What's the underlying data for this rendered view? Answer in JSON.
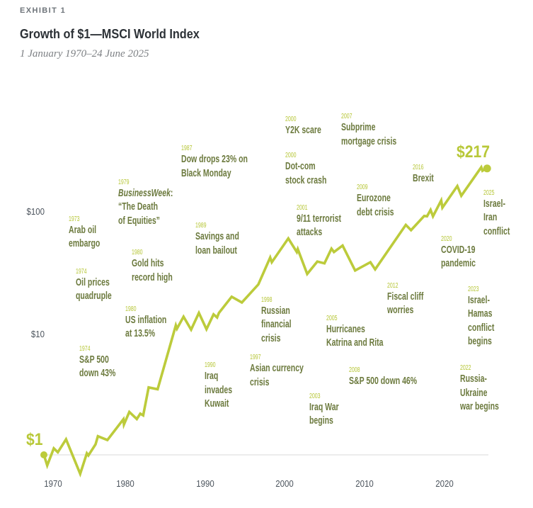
{
  "header": {
    "exhibit": "EXHIBIT 1",
    "title": "Growth of $1—MSCI World Index",
    "subtitle": "1 January 1970–24 June 2025"
  },
  "colors": {
    "line": "#bccb3b",
    "big_label": "#b8c838",
    "annotation_year": "#b6c636",
    "annotation_text": "#6c7a3e",
    "axis_text": "#4b535c",
    "gridline": "#e6e6e6",
    "title": "#2c3136"
  },
  "chart_data": {
    "type": "line",
    "title": "Growth of $1—MSCI World Index",
    "subtitle": "1 January 1970–24 June 2025",
    "xlabel": "",
    "ylabel": "",
    "y_scale": "log",
    "xlim": [
      1970,
      2025.5
    ],
    "ylim": [
      0.65,
      260
    ],
    "grid": "single baseline at $1",
    "legend": "none",
    "x_ticks": [
      1970,
      1980,
      1990,
      2000,
      2010,
      2020
    ],
    "x_tick_labels": [
      "1970",
      "1980",
      "1990",
      "2000",
      "2010",
      "2020"
    ],
    "y_ticks": [
      10,
      100
    ],
    "y_tick_labels": [
      "$10",
      "$100"
    ],
    "start_value": 1,
    "start_label": "$1",
    "end_value": 217,
    "end_label": "$217",
    "series": [
      {
        "name": "MSCI World Index (growth of $1)",
        "x": [
          1970.0,
          1970.42,
          1971.24,
          1971.75,
          1972.78,
          1974.56,
          1975.39,
          1975.59,
          1976.48,
          1976.78,
          1977.97,
          1979.97,
          1980.04,
          1980.72,
          1981.66,
          1982.1,
          1982.46,
          1983.14,
          1984.27,
          1986.55,
          1986.7,
          1987.52,
          1988.47,
          1989.45,
          1990.4,
          1991.29,
          1991.73,
          1991.96,
          1993.56,
          1994.84,
          1996.91,
          1998.39,
          1998.6,
          2000.67,
          2001.73,
          2001.86,
          2003.04,
          2004.31,
          2005.2,
          2006.08,
          2006.39,
          2007.48,
          2009.05,
          2010.97,
          2011.56,
          2015.41,
          2016.07,
          2017.72,
          2018.07,
          2018.52,
          2018.82,
          2019.85,
          2020.0,
          2021.87,
          2022.37,
          2024.88,
          2025.03,
          2025.48
        ],
        "y": [
          1.0,
          0.82,
          1.13,
          1.05,
          1.34,
          0.7,
          1.03,
          0.99,
          1.22,
          1.42,
          1.32,
          1.95,
          1.77,
          2.24,
          1.96,
          2.17,
          2.1,
          3.55,
          3.43,
          11.4,
          10.7,
          13.4,
          10.5,
          14.4,
          10.6,
          14.0,
          13.2,
          14.4,
          19.5,
          17.5,
          24.6,
          40.8,
          37.3,
          58.3,
          45.2,
          47.7,
          29.9,
          37.8,
          36.5,
          48.1,
          45.2,
          51.0,
          31.9,
          37.3,
          32.6,
          75.2,
          68.1,
          89.0,
          88.3,
          99.6,
          88.3,
          119,
          104,
          156,
          130,
          222,
          208,
          217
        ]
      }
    ],
    "annotations": [
      {
        "year": "1973",
        "lines": [
          "Arab oil",
          "embargo"
        ]
      },
      {
        "year": "1974",
        "lines": [
          "Oil prices",
          "quadruple"
        ]
      },
      {
        "year": "1974",
        "lines": [
          "S&P 500",
          "down 43%"
        ]
      },
      {
        "year": "1979",
        "italic": "BusinessWeek",
        "suffix": ":",
        "lines": [
          "“The Death",
          "of Equities”"
        ]
      },
      {
        "year": "1980",
        "lines": [
          "Gold hits",
          "record high"
        ]
      },
      {
        "year": "1980",
        "lines": [
          "US inflation",
          "at 13.5%"
        ]
      },
      {
        "year": "1987",
        "lines": [
          "Dow drops 23% on",
          "Black Monday"
        ]
      },
      {
        "year": "1989",
        "lines": [
          "Savings and",
          "loan bailout"
        ]
      },
      {
        "year": "1990",
        "lines": [
          "Iraq",
          "invades",
          "Kuwait"
        ]
      },
      {
        "year": "1997",
        "lines": [
          "Asian currency",
          "crisis"
        ]
      },
      {
        "year": "1998",
        "lines": [
          "Russian",
          "financial",
          "crisis"
        ]
      },
      {
        "year": "2000",
        "lines": [
          "Y2K scare"
        ]
      },
      {
        "year": "2000",
        "lines": [
          "Dot-com",
          "stock crash"
        ]
      },
      {
        "year": "2001",
        "lines": [
          "9/11 terrorist",
          "attacks"
        ]
      },
      {
        "year": "2003",
        "lines": [
          "Iraq War",
          "begins"
        ]
      },
      {
        "year": "2005",
        "lines": [
          "Hurricanes",
          "Katrina and Rita"
        ]
      },
      {
        "year": "2007",
        "lines": [
          "Subprime",
          "mortgage crisis"
        ]
      },
      {
        "year": "2008",
        "lines": [
          "S&P 500 down 46%"
        ]
      },
      {
        "year": "2009",
        "lines": [
          "Eurozone",
          "debt crisis"
        ]
      },
      {
        "year": "2012",
        "lines": [
          "Fiscal cliff",
          "worries"
        ]
      },
      {
        "year": "2016",
        "lines": [
          "Brexit"
        ]
      },
      {
        "year": "2020",
        "lines": [
          "COVID-19",
          "pandemic"
        ]
      },
      {
        "year": "2022",
        "lines": [
          "Russia-",
          "Ukraine",
          "war begins"
        ]
      },
      {
        "year": "2023",
        "lines": [
          "Israel-",
          "Hamas",
          "conflict",
          "begins"
        ]
      },
      {
        "year": "2025",
        "lines": [
          "Israel-",
          "Iran",
          "conflict"
        ]
      }
    ]
  }
}
